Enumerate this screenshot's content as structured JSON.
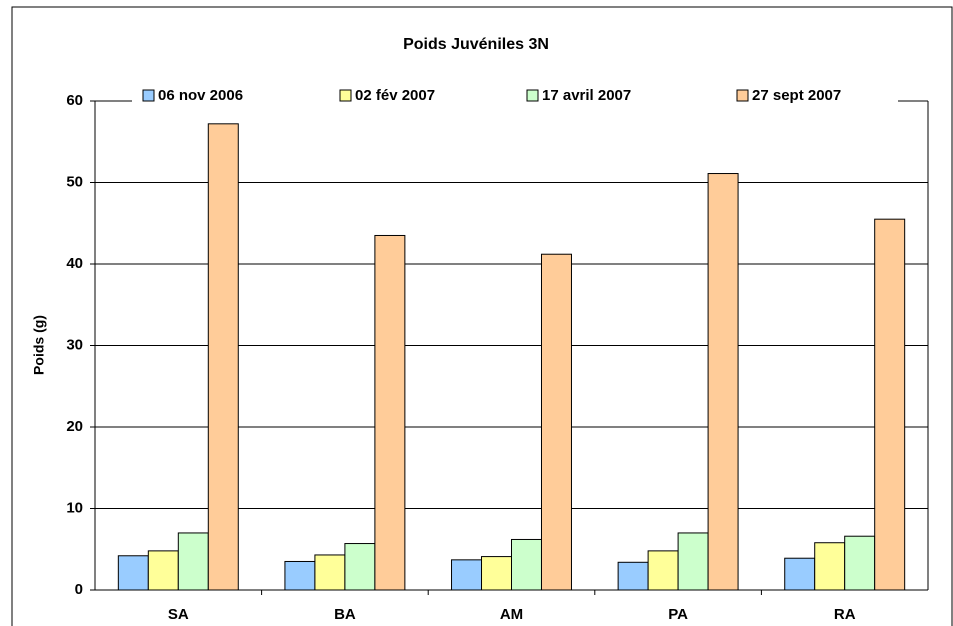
{
  "chart_data": {
    "type": "bar",
    "title": "Poids Juvéniles 3N",
    "y_label": "Poids (g)",
    "categories": [
      "SA",
      "BA",
      "AM",
      "PA",
      "RA"
    ],
    "series": [
      {
        "name": "06 nov 2006",
        "color": "#99ccff",
        "values": [
          4.2,
          3.5,
          3.7,
          3.4,
          3.9
        ]
      },
      {
        "name": "02 fév 2007",
        "color": "#ffff99",
        "values": [
          4.8,
          4.3,
          4.1,
          4.8,
          5.8
        ]
      },
      {
        "name": "17 avril 2007",
        "color": "#ccffcc",
        "values": [
          7.0,
          5.7,
          6.2,
          7.0,
          6.6
        ]
      },
      {
        "name": "27 sept 2007",
        "color": "#ffcc99",
        "values": [
          57.2,
          43.5,
          41.2,
          51.1,
          45.5
        ]
      }
    ],
    "ylim": [
      0,
      60
    ],
    "yticks": [
      0,
      10,
      20,
      30,
      40,
      50,
      60
    ],
    "grid": true,
    "legend": "top"
  }
}
